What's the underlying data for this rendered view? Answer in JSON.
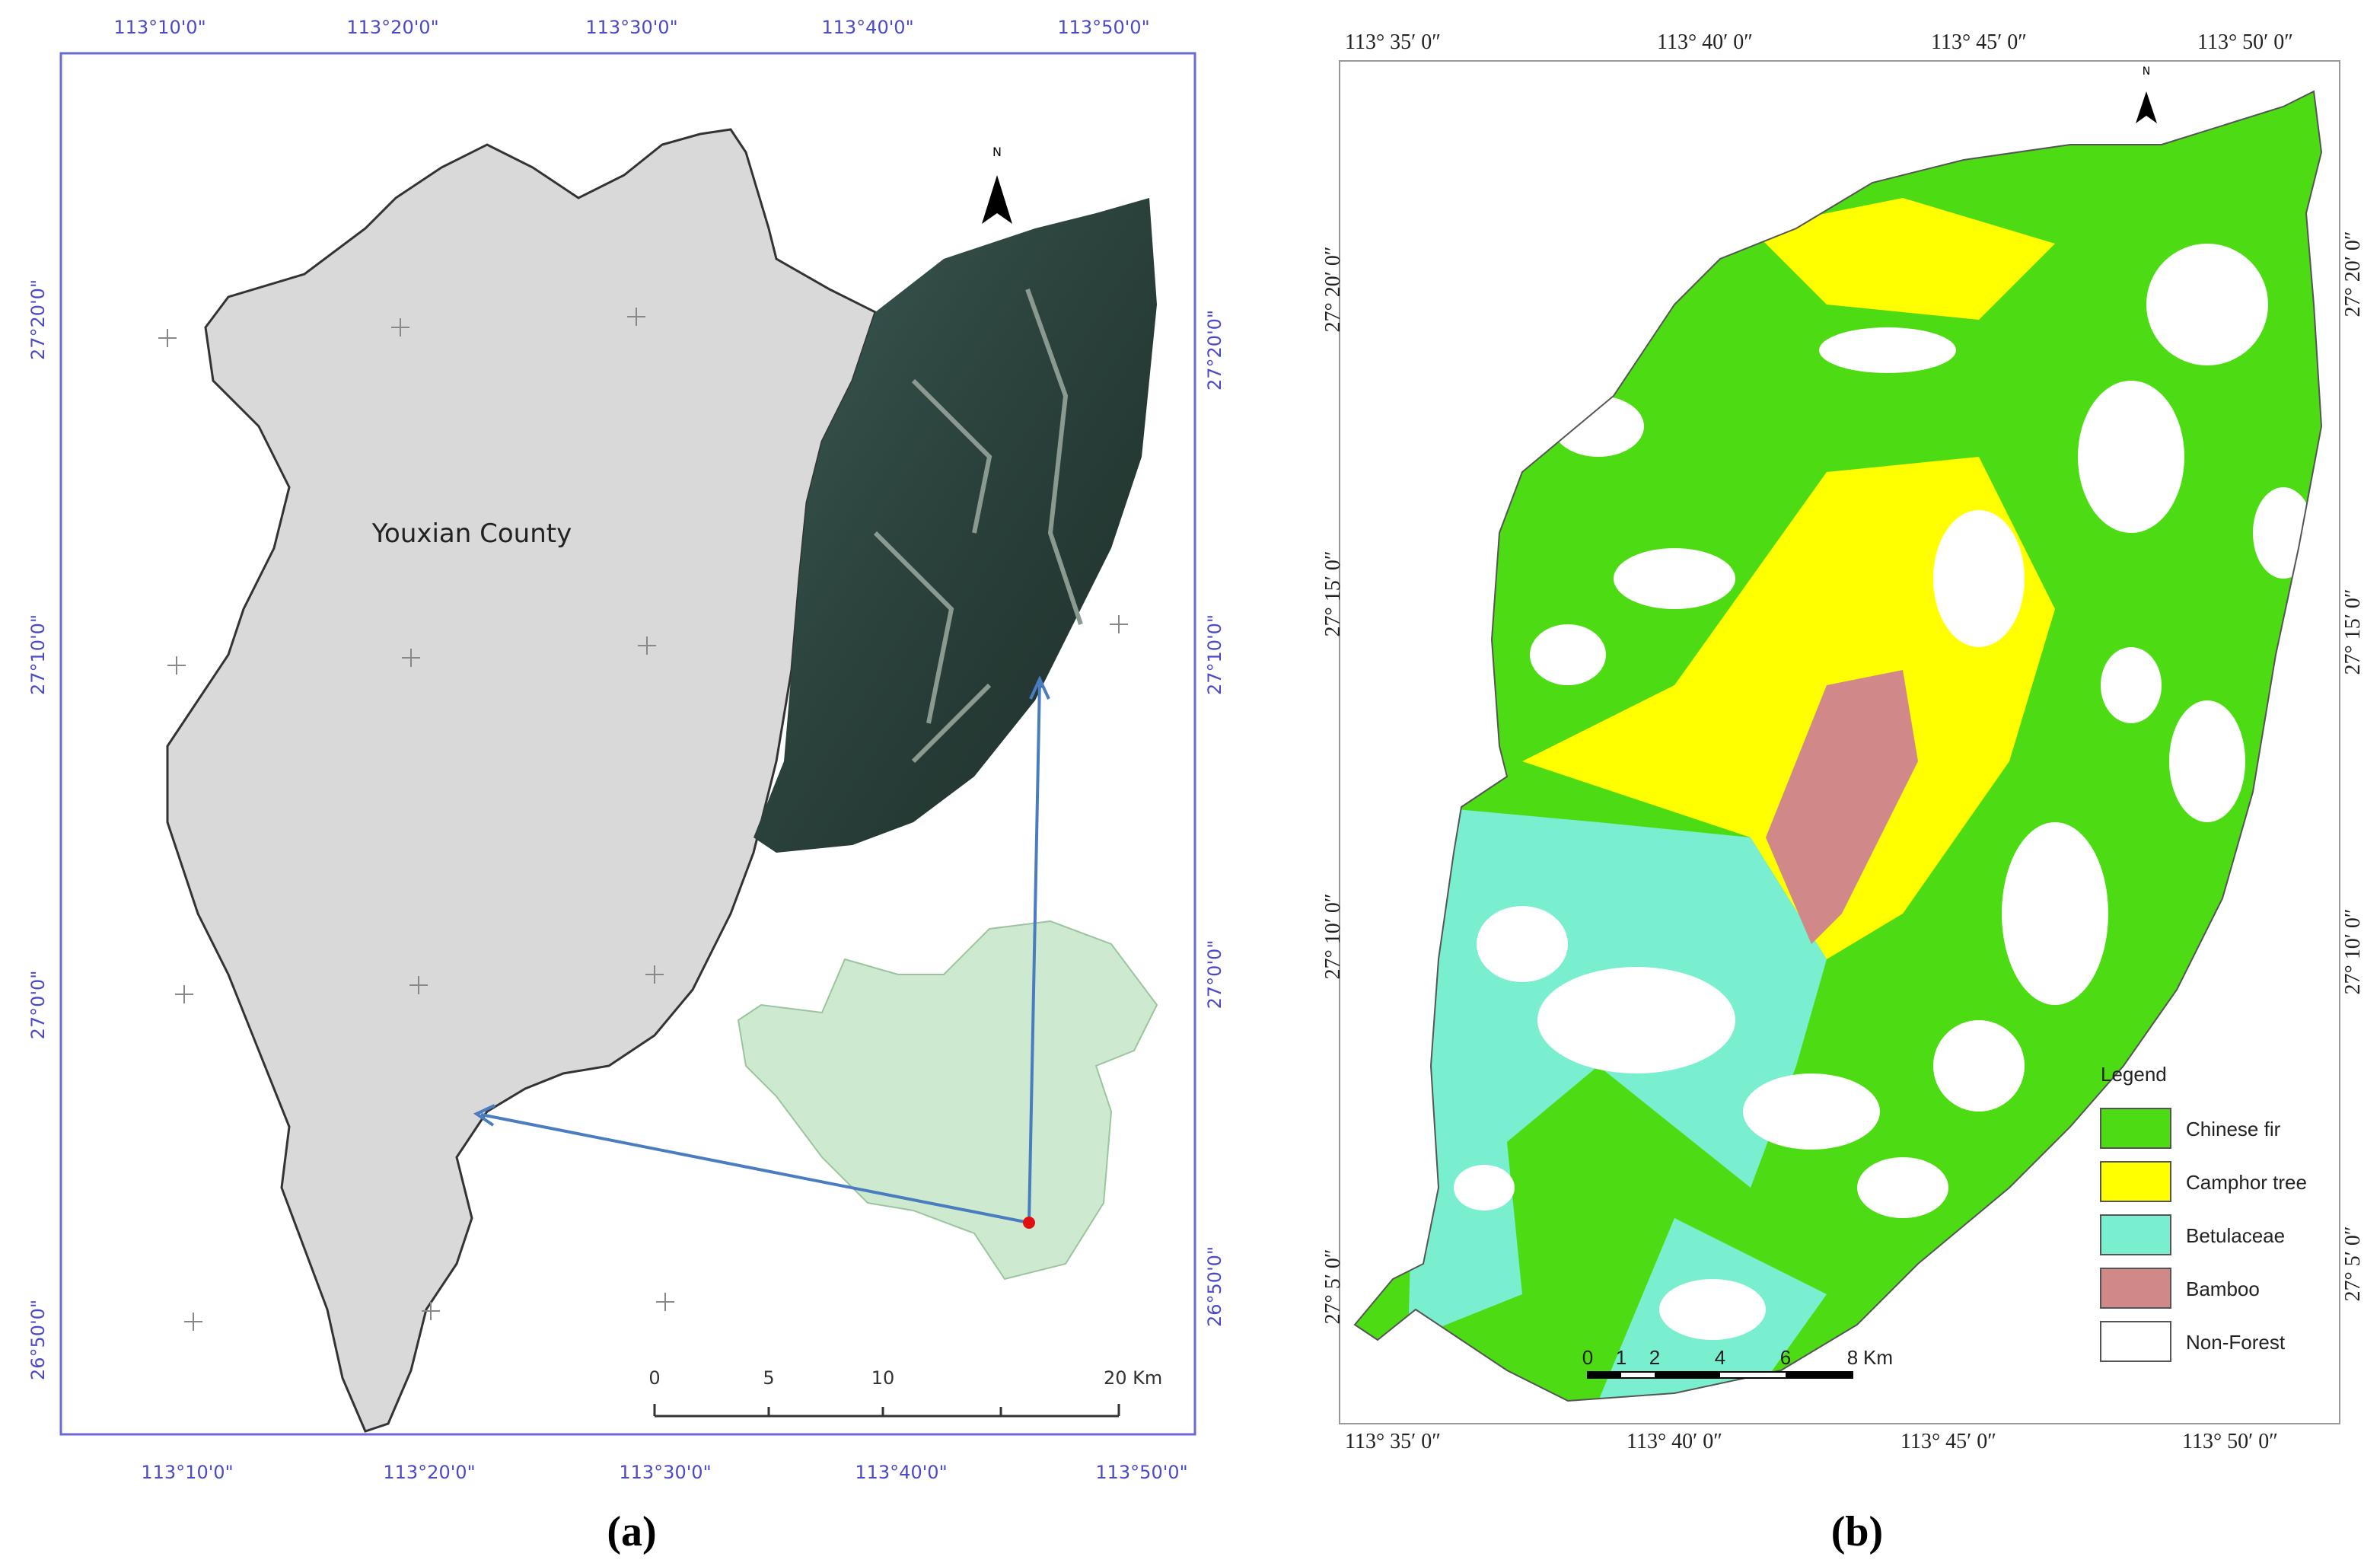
{
  "panel_a": {
    "top_labels": [
      "113°10'0\"",
      "113°20'0\"",
      "113°30'0\"",
      "113°40'0\"",
      "113°50'0\""
    ],
    "bottom_labels": [
      "113°10'0\"",
      "113°20'0\"",
      "113°30'0\"",
      "113°40'0\"",
      "113°50'0\""
    ],
    "left_labels": [
      "27°20'0\"",
      "27°10'0\"",
      "27°0'0\"",
      "26°50'0\""
    ],
    "right_labels": [
      "27°20'0\"",
      "27°10'0\"",
      "27°0'0\"",
      "26°50'0\""
    ],
    "county_label": "Youxian County",
    "north": "N",
    "scale_labels": [
      "0",
      "5",
      "10",
      "20 Km"
    ],
    "caption": "(a)"
  },
  "panel_b": {
    "top_labels": [
      "113° 35′ 0″",
      "113° 40′ 0″",
      "113° 45′ 0″",
      "113° 50′ 0″"
    ],
    "bottom_labels": [
      "113° 35′ 0″",
      "113° 40′ 0″",
      "113° 45′ 0″",
      "113° 50′ 0″"
    ],
    "left_labels": [
      "27° 20′ 0″",
      "27° 15′ 0″",
      "27° 10′ 0″",
      "27° 5′ 0″"
    ],
    "right_labels": [
      "27° 20′ 0″",
      "27° 15′ 0″",
      "27° 10′ 0″",
      "27° 5′ 0″"
    ],
    "north": "N",
    "scale_labels": [
      "0",
      "1",
      "2",
      "4",
      "6",
      "8",
      "Km"
    ],
    "legend": {
      "title": "Legend",
      "items": [
        {
          "label": "Chinese fir",
          "color": "#4ddc14"
        },
        {
          "label": "Camphor tree",
          "color": "#ffff00"
        },
        {
          "label": "Betulaceae",
          "color": "#7aefd0"
        },
        {
          "label": "Bamboo",
          "color": "#d08888"
        },
        {
          "label": "Non-Forest",
          "color": "#ffffff"
        }
      ]
    },
    "caption": "(b)"
  }
}
